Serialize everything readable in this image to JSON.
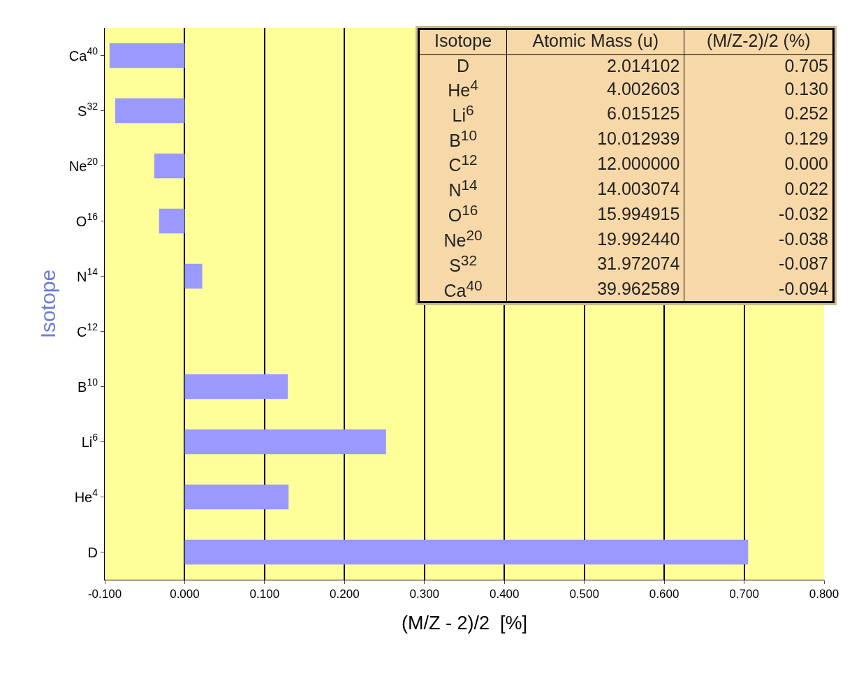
{
  "chart_data": [
    {
      "type": "bar",
      "orientation": "horizontal",
      "xlabel": "(M/Z - 2)/2  [%]",
      "ylabel": "Isotope",
      "categories": [
        "Ca$^{40}$",
        "S$^{32}$",
        "Ne$^{20}$",
        "O$^{16}$",
        "N$^{14}$",
        "C$^{12}$",
        "B$^{10}$",
        "Li$^{6}$",
        "He$^{4}$",
        "D"
      ],
      "values": [
        -0.094,
        -0.087,
        -0.038,
        -0.032,
        0.022,
        0.0,
        0.129,
        0.252,
        0.13,
        0.705
      ],
      "color": "#9999ff",
      "xlim": [
        -0.1,
        0.8
      ],
      "xticks": [
        {
          "value": -0.1,
          "label": "-0.100"
        },
        {
          "value": 0,
          "label": "0.000"
        },
        {
          "value": 0.1,
          "label": "0.100"
        },
        {
          "value": 0.2,
          "label": "0.200"
        },
        {
          "value": 0.3,
          "label": "0.300"
        },
        {
          "value": 0.4,
          "label": "0.400"
        },
        {
          "value": 0.5,
          "label": "0.500"
        },
        {
          "value": 0.6,
          "label": "0.600"
        },
        {
          "value": 0.7,
          "label": "0.700"
        },
        {
          "value": 0.8,
          "label": "0.800"
        }
      ],
      "grid": "x"
    },
    {
      "type": "other",
      "categories": [
        "Isotope",
        "Atomic Mass (u)",
        "(M/Z-2)/2 (%)"
      ],
      "y_categories": [
        "D",
        "He$^{4}$",
        "Li$^{6}$",
        "B$^{10}$",
        "C$^{12}$",
        "N$^{14}$",
        "O$^{16}$",
        "Ne$^{20}$",
        "S$^{32}$",
        "Ca$^{40}$"
      ],
      "cell_labels": [
        [
          "2.014102",
          "0.705"
        ],
        [
          "4.002603",
          "0.130"
        ],
        [
          "6.015125",
          "0.252"
        ],
        [
          "10.012939",
          "0.129"
        ],
        [
          "12.000000",
          "0.000"
        ],
        [
          "14.003074",
          "0.022"
        ],
        [
          "15.994915",
          "-0.032"
        ],
        [
          "19.992440",
          "-0.038"
        ],
        [
          "31.972074",
          "-0.087"
        ],
        [
          "39.962589",
          "-0.094"
        ]
      ]
    }
  ]
}
